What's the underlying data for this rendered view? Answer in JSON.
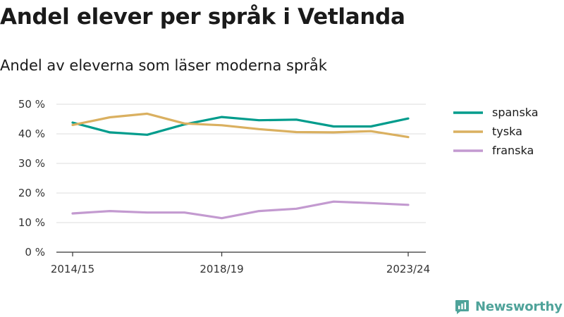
{
  "title": "Andel elever per språk i Vetlanda",
  "subtitle": "Andel av eleverna som läser moderna språk",
  "brand": {
    "name": "Newsworthy",
    "icon": "newsworthy-logo-icon"
  },
  "colors": {
    "spanska": "#009c8c",
    "tyska": "#dab060",
    "franska": "#c39ad0",
    "grid": "#dcdcdc",
    "axis": "#333333",
    "brand": "#4fa39a"
  },
  "chart_data": {
    "type": "line",
    "x": [
      "2014/15",
      "2015/16",
      "2016/17",
      "2017/18",
      "2018/19",
      "2019/20",
      "2020/21",
      "2021/22",
      "2022/23",
      "2023/24"
    ],
    "x_tick_labels": [
      "2014/15",
      "2018/19",
      "2023/24"
    ],
    "y_ticks": [
      "0 %",
      "10 %",
      "20 %",
      "30 %",
      "40 %",
      "50 %"
    ],
    "ylim": [
      0,
      50
    ],
    "y_unit": "%",
    "grid": true,
    "legend_position": "right",
    "series": [
      {
        "name": "spanska",
        "color": "#009c8c",
        "values": [
          43.8,
          40.5,
          39.7,
          43.2,
          45.7,
          44.6,
          44.8,
          42.5,
          42.5,
          45.2
        ]
      },
      {
        "name": "tyska",
        "color": "#dab060",
        "values": [
          43.0,
          45.6,
          46.8,
          43.5,
          42.9,
          41.6,
          40.6,
          40.5,
          40.9,
          38.9
        ]
      },
      {
        "name": "franska",
        "color": "#c39ad0",
        "values": [
          13.1,
          13.9,
          13.4,
          13.4,
          11.5,
          13.9,
          14.7,
          17.1,
          16.6,
          16.0
        ]
      }
    ]
  }
}
